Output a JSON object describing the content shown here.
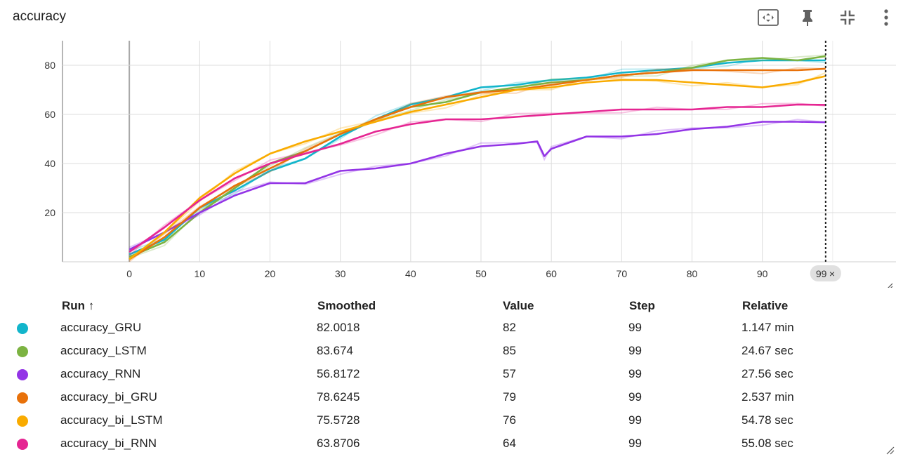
{
  "card": {
    "title": "accuracy"
  },
  "toolbar": [
    {
      "name": "fit-domain-icon"
    },
    {
      "name": "pin-icon"
    },
    {
      "name": "collapse-icon"
    },
    {
      "name": "more-vert-icon"
    }
  ],
  "hover": {
    "step_label": "99",
    "close_glyph": "×"
  },
  "table": {
    "headers": {
      "run": "Run ↑",
      "smoothed": "Smoothed",
      "value": "Value",
      "step": "Step",
      "relative": "Relative"
    },
    "rows": [
      {
        "run": "accuracy_GRU",
        "color": "#12b5cb",
        "smoothed": "82.0018",
        "value": "82",
        "step": "99",
        "relative": "1.147 min"
      },
      {
        "run": "accuracy_LSTM",
        "color": "#7cb342",
        "smoothed": "83.674",
        "value": "85",
        "step": "99",
        "relative": "24.67 sec"
      },
      {
        "run": "accuracy_RNN",
        "color": "#9334e6",
        "smoothed": "56.8172",
        "value": "57",
        "step": "99",
        "relative": "27.56 sec"
      },
      {
        "run": "accuracy_bi_GRU",
        "color": "#e8710a",
        "smoothed": "78.6245",
        "value": "79",
        "step": "99",
        "relative": "2.537 min"
      },
      {
        "run": "accuracy_bi_LSTM",
        "color": "#f9ab00",
        "smoothed": "75.5728",
        "value": "76",
        "step": "99",
        "relative": "54.78 sec"
      },
      {
        "run": "accuracy_bi_RNN",
        "color": "#e52592",
        "smoothed": "63.8706",
        "value": "64",
        "step": "99",
        "relative": "55.08 sec"
      }
    ]
  },
  "chart_data": {
    "type": "line",
    "title": "accuracy",
    "xlabel": "",
    "ylabel": "",
    "xlim": [
      -9.5,
      109
    ],
    "ylim": [
      0,
      90
    ],
    "xticks": [
      0,
      10,
      20,
      30,
      40,
      50,
      60,
      70,
      80,
      90
    ],
    "yticks": [
      20,
      40,
      60,
      80
    ],
    "grid": true,
    "hover_step": 99,
    "series": [
      {
        "name": "accuracy_GRU",
        "color": "#12b5cb",
        "points": [
          [
            0,
            3
          ],
          [
            5,
            9
          ],
          [
            10,
            22
          ],
          [
            15,
            29
          ],
          [
            20,
            37
          ],
          [
            25,
            42
          ],
          [
            30,
            51
          ],
          [
            35,
            58
          ],
          [
            40,
            64
          ],
          [
            45,
            67
          ],
          [
            50,
            71
          ],
          [
            55,
            72
          ],
          [
            60,
            74
          ],
          [
            65,
            75
          ],
          [
            70,
            77
          ],
          [
            75,
            78
          ],
          [
            80,
            79
          ],
          [
            85,
            81
          ],
          [
            90,
            82
          ],
          [
            95,
            82
          ],
          [
            99,
            82
          ]
        ]
      },
      {
        "name": "accuracy_LSTM",
        "color": "#7cb342",
        "points": [
          [
            0,
            2
          ],
          [
            5,
            8
          ],
          [
            10,
            20
          ],
          [
            15,
            30
          ],
          [
            20,
            40
          ],
          [
            25,
            45
          ],
          [
            30,
            52
          ],
          [
            35,
            58
          ],
          [
            40,
            63
          ],
          [
            45,
            65
          ],
          [
            50,
            69
          ],
          [
            55,
            71
          ],
          [
            60,
            73
          ],
          [
            65,
            74
          ],
          [
            70,
            76
          ],
          [
            75,
            77
          ],
          [
            80,
            79
          ],
          [
            85,
            82
          ],
          [
            90,
            83
          ],
          [
            95,
            82
          ],
          [
            99,
            83.7
          ]
        ]
      },
      {
        "name": "accuracy_RNN",
        "color": "#9334e6",
        "points": [
          [
            0,
            5
          ],
          [
            5,
            12
          ],
          [
            10,
            20
          ],
          [
            15,
            27
          ],
          [
            20,
            32
          ],
          [
            25,
            32
          ],
          [
            30,
            37
          ],
          [
            35,
            38
          ],
          [
            40,
            40
          ],
          [
            45,
            44
          ],
          [
            50,
            47
          ],
          [
            55,
            48
          ],
          [
            58,
            49
          ],
          [
            59,
            43
          ],
          [
            60,
            46
          ],
          [
            65,
            51
          ],
          [
            70,
            51
          ],
          [
            75,
            52
          ],
          [
            80,
            54
          ],
          [
            85,
            55
          ],
          [
            90,
            57
          ],
          [
            95,
            57
          ],
          [
            99,
            56.8
          ]
        ]
      },
      {
        "name": "accuracy_bi_GRU",
        "color": "#e8710a",
        "points": [
          [
            0,
            1
          ],
          [
            5,
            10
          ],
          [
            10,
            22
          ],
          [
            15,
            31
          ],
          [
            20,
            38
          ],
          [
            25,
            45
          ],
          [
            30,
            52
          ],
          [
            35,
            58
          ],
          [
            40,
            63
          ],
          [
            45,
            67
          ],
          [
            50,
            69
          ],
          [
            55,
            70
          ],
          [
            60,
            72
          ],
          [
            65,
            74
          ],
          [
            70,
            76
          ],
          [
            75,
            77
          ],
          [
            80,
            78
          ],
          [
            85,
            78
          ],
          [
            90,
            78
          ],
          [
            95,
            78
          ],
          [
            99,
            78.6
          ]
        ]
      },
      {
        "name": "accuracy_bi_LSTM",
        "color": "#f9ab00",
        "points": [
          [
            0,
            1
          ],
          [
            5,
            12
          ],
          [
            10,
            26
          ],
          [
            15,
            36
          ],
          [
            20,
            44
          ],
          [
            25,
            49
          ],
          [
            30,
            53
          ],
          [
            35,
            57
          ],
          [
            40,
            61
          ],
          [
            45,
            64
          ],
          [
            50,
            67
          ],
          [
            55,
            70
          ],
          [
            60,
            71
          ],
          [
            65,
            73
          ],
          [
            70,
            74
          ],
          [
            75,
            74
          ],
          [
            80,
            73
          ],
          [
            85,
            72
          ],
          [
            90,
            71
          ],
          [
            95,
            73
          ],
          [
            99,
            75.6
          ]
        ]
      },
      {
        "name": "accuracy_bi_RNN",
        "color": "#e52592",
        "points": [
          [
            0,
            4
          ],
          [
            5,
            14
          ],
          [
            10,
            25
          ],
          [
            15,
            34
          ],
          [
            20,
            40
          ],
          [
            25,
            44
          ],
          [
            30,
            48
          ],
          [
            35,
            53
          ],
          [
            40,
            56
          ],
          [
            45,
            58
          ],
          [
            50,
            58
          ],
          [
            55,
            59
          ],
          [
            60,
            60
          ],
          [
            65,
            61
          ],
          [
            70,
            62
          ],
          [
            75,
            62
          ],
          [
            80,
            62
          ],
          [
            85,
            63
          ],
          [
            90,
            63
          ],
          [
            95,
            64
          ],
          [
            99,
            63.9
          ]
        ]
      }
    ]
  }
}
